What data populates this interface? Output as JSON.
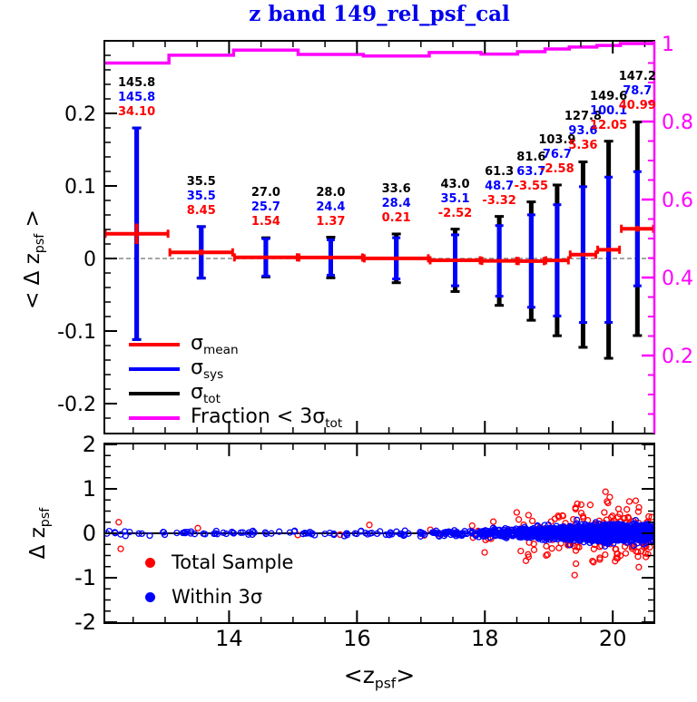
{
  "title": "z band 149_rel_psf_cal",
  "colors": {
    "title": "#0000ee",
    "sigma_sys": "#0000ff",
    "sigma_tot": "#000000",
    "sigma_mean": "#ff0000",
    "fraction": "#ff00ff",
    "axis": "#000000",
    "zero_dash": "#888888",
    "scatter_total": "#ff0000",
    "scatter_within": "#0000ff"
  },
  "top_panel": {
    "y_title": [
      {
        "t": "< "
      },
      {
        "t": "Δ"
      },
      {
        "t": " z"
      },
      {
        "t": "psf",
        "sub": 1
      },
      {
        "t": " >"
      }
    ],
    "y_ticks": {
      "values": [
        0.2,
        0.1,
        0,
        -0.1,
        -0.2
      ],
      "labels": [
        "0.2",
        "0.1",
        "0",
        "-0.1",
        "-0.2"
      ]
    },
    "right_ticks": {
      "values": [
        1,
        0.8,
        0.6,
        0.4,
        0.2
      ],
      "labels": [
        "1",
        "0.8",
        "0.6",
        "0.4",
        "0.2"
      ]
    },
    "legend": [
      {
        "name": "sigma-mean",
        "color": "#ff0000",
        "label": [
          {
            "t": "σ"
          },
          {
            "t": "mean",
            "sub": 1
          }
        ]
      },
      {
        "name": "sigma-sys",
        "color": "#0000ff",
        "label": [
          {
            "t": "σ"
          },
          {
            "t": "sys",
            "sub": 1
          }
        ]
      },
      {
        "name": "sigma-tot",
        "color": "#000000",
        "label": [
          {
            "t": "σ"
          },
          {
            "t": "tot",
            "sub": 1
          }
        ]
      },
      {
        "name": "fraction-lt-3sigma-tot",
        "color": "#ff00ff",
        "label": [
          {
            "t": "Fraction < 3"
          },
          {
            "t": "σ"
          },
          {
            "t": "tot",
            "sub": 1
          }
        ]
      }
    ]
  },
  "bottom_panel": {
    "y_title": [
      {
        "t": "Δ"
      },
      {
        "t": " z"
      },
      {
        "t": "psf",
        "sub": 1
      }
    ],
    "y_ticks": {
      "values": [
        2,
        1,
        0,
        -1,
        -2
      ],
      "labels": [
        "2",
        "1",
        "0",
        "-1",
        "-2"
      ]
    },
    "legend": [
      {
        "name": "total-sample",
        "color": "#ff0000",
        "label": "Total Sample"
      },
      {
        "name": "within-3sigma",
        "color": "#0000ff",
        "label": "Within 3σ"
      }
    ]
  },
  "x_axis": {
    "ticks": {
      "values": [
        14,
        16,
        18,
        20
      ],
      "labels": [
        "14",
        "16",
        "18",
        "20"
      ]
    },
    "title": [
      {
        "t": "<z"
      },
      {
        "t": "psf",
        "sub": 1
      },
      {
        "t": ">"
      }
    ]
  },
  "chart_data": [
    {
      "type": "errorbar-summary",
      "title": "z band 149_rel_psf_cal",
      "xlabel": "<z_psf>",
      "ylabel": "< Delta z_psf >",
      "right_axis_label": "Fraction < 3 sigma_tot",
      "x_range": [
        12.05,
        20.65
      ],
      "y_range": [
        -0.24,
        0.3
      ],
      "right_axis_range": [
        0,
        1.0
      ],
      "units": "mmag",
      "legend_position": "lower-left",
      "grid": false,
      "bins": [
        {
          "z_lo": 12.05,
          "z_hi": 13.06,
          "sigma_tot": "145.8",
          "sigma_sys": "145.8",
          "mean": "34.10",
          "sigma_mean": 14,
          "fraction": 0.95
        },
        {
          "z_lo": 13.06,
          "z_hi": 14.07,
          "sigma_tot": "35.5",
          "sigma_sys": "35.5",
          "mean": "8.45",
          "sigma_mean": 4,
          "fraction": 0.97
        },
        {
          "z_lo": 14.07,
          "z_hi": 15.08,
          "sigma_tot": "27.0",
          "sigma_sys": "25.7",
          "mean": "1.54",
          "sigma_mean": 2,
          "fraction": 0.983
        },
        {
          "z_lo": 15.08,
          "z_hi": 16.1,
          "sigma_tot": "28.0",
          "sigma_sys": "24.4",
          "mean": "1.37",
          "sigma_mean": 2,
          "fraction": 0.972
        },
        {
          "z_lo": 16.1,
          "z_hi": 17.13,
          "sigma_tot": "33.6",
          "sigma_sys": "28.4",
          "mean": "0.21",
          "sigma_mean": 2,
          "fraction": 0.968
        },
        {
          "z_lo": 17.13,
          "z_hi": 17.94,
          "sigma_tot": "43.0",
          "sigma_sys": "35.1",
          "mean": "-2.52",
          "sigma_mean": 2,
          "fraction": 0.977
        },
        {
          "z_lo": 17.94,
          "z_hi": 18.51,
          "sigma_tot": "61.3",
          "sigma_sys": "48.7",
          "mean": "-3.32",
          "sigma_mean": 2,
          "fraction": 0.973
        },
        {
          "z_lo": 18.51,
          "z_hi": 18.94,
          "sigma_tot": "81.6",
          "sigma_sys": "63.7",
          "mean": "-3.55",
          "sigma_mean": 2,
          "fraction": 0.979
        },
        {
          "z_lo": 18.94,
          "z_hi": 19.32,
          "sigma_tot": "103.9",
          "sigma_sys": "76.7",
          "mean": "-2.58",
          "sigma_mean": 2,
          "fraction": 0.986
        },
        {
          "z_lo": 19.32,
          "z_hi": 19.75,
          "sigma_tot": "127.8",
          "sigma_sys": "93.6",
          "mean": "5.36",
          "sigma_mean": 2,
          "fraction": 0.991
        },
        {
          "z_lo": 19.75,
          "z_hi": 20.12,
          "sigma_tot": "149.6",
          "sigma_sys": "100.1",
          "mean": "12.05",
          "sigma_mean": 3,
          "fraction": 0.995
        },
        {
          "z_lo": 20.12,
          "z_hi": 20.65,
          "sigma_tot": "147.2",
          "sigma_sys": "78.7",
          "mean": "40.99",
          "sigma_mean": 4,
          "fraction": 1.0
        }
      ]
    },
    {
      "type": "scatter",
      "xlabel": "<z_psf>",
      "ylabel": "Delta z_psf",
      "x_range": [
        12.05,
        20.65
      ],
      "y_range": [
        -2,
        2
      ],
      "series": [
        {
          "name": "Total Sample",
          "color": "#ff0000",
          "marker": "open-circle"
        },
        {
          "name": "Within 3σ",
          "color": "#0000ff",
          "marker": "open-circle"
        }
      ],
      "gen": {
        "seed": 42,
        "note": "dense band at Delta z ~ 0, spread and density grow with z; red outliers up to |Delta z| ~ 1.1 beyond z ~ 17",
        "n_blue": [
          14,
          20,
          16,
          20,
          28,
          50,
          85,
          150,
          230,
          330,
          430,
          520
        ],
        "s_blue": [
          0.035,
          0.03,
          0.025,
          0.025,
          0.03,
          0.04,
          0.05,
          0.06,
          0.07,
          0.08,
          0.09,
          0.085
        ],
        "n_red": [
          2,
          1,
          1,
          1,
          2,
          5,
          10,
          18,
          28,
          40,
          52,
          55
        ],
        "s_red": [
          0.18,
          0.08,
          0.07,
          0.07,
          0.1,
          0.15,
          0.25,
          0.3,
          0.35,
          0.4,
          0.42,
          0.38
        ]
      }
    }
  ]
}
